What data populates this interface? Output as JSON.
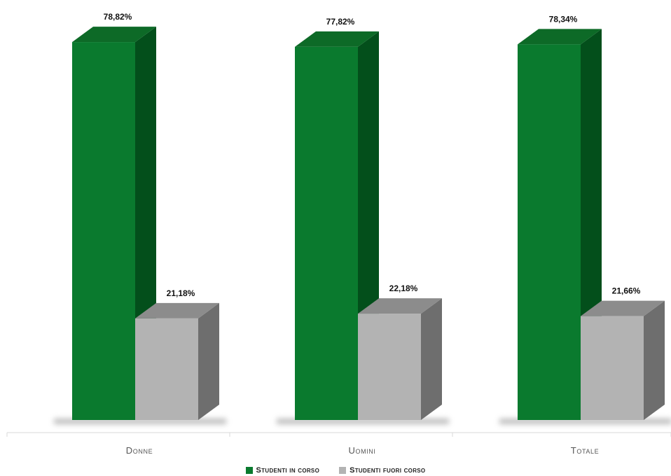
{
  "chart_data": {
    "type": "bar",
    "categories": [
      "Donne",
      "Uomini",
      "Totale"
    ],
    "series": [
      {
        "name": "Studenti in corso",
        "values": [
          78.82,
          77.82,
          78.34
        ],
        "labels": [
          "78,82%",
          "77,82%",
          "78,34%"
        ],
        "color": "#0a7a2e",
        "side_color": "#034f1b",
        "top_color": "#0d6a27"
      },
      {
        "name": "Studenti fuori corso",
        "values": [
          21.18,
          22.18,
          21.66
        ],
        "labels": [
          "21,18%",
          "22,18%",
          "21,66%"
        ],
        "color": "#b3b3b3",
        "side_color": "#6e6e6e",
        "top_color": "#8c8c8c"
      }
    ],
    "ylim": [
      0,
      100
    ],
    "grid": false,
    "legend": "bottom",
    "style": "3d-column"
  }
}
